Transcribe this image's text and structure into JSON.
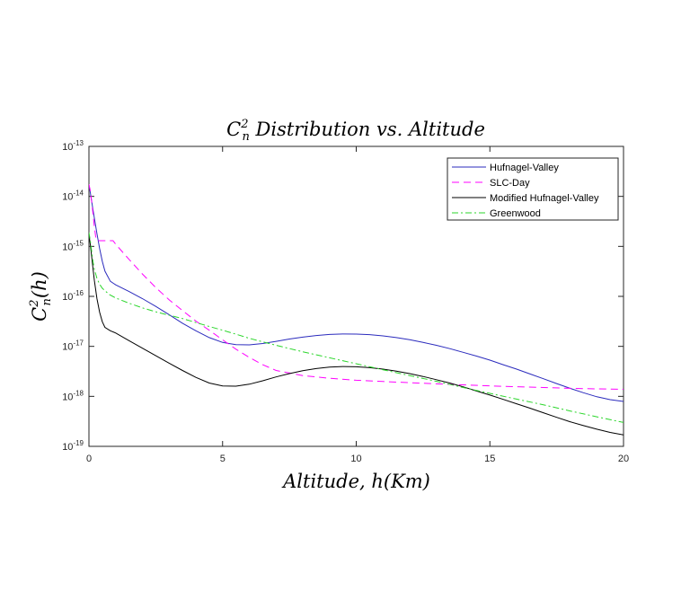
{
  "chart_data": {
    "type": "line",
    "title": "C_n^2 Distribution vs. Altitude",
    "xlabel": "Altitude, h(Km)",
    "ylabel": "C_n^2(h)",
    "xlim": [
      0,
      20
    ],
    "ylim_exponent": [
      -19,
      -13
    ],
    "y_scale": "log",
    "x_ticks": [
      "0",
      "5",
      "10",
      "15",
      "20"
    ],
    "y_ticks": [
      {
        "base": "10",
        "exp": "-13"
      },
      {
        "base": "10",
        "exp": "-14"
      },
      {
        "base": "10",
        "exp": "-15"
      },
      {
        "base": "10",
        "exp": "-16"
      },
      {
        "base": "10",
        "exp": "-17"
      },
      {
        "base": "10",
        "exp": "-18"
      },
      {
        "base": "10",
        "exp": "-19"
      }
    ],
    "grid": false,
    "legend_position": "top-right",
    "series": [
      {
        "name": "Hufnagel-Valley",
        "color": "#2b2bbd",
        "dash": "solid",
        "x": [
          0,
          0.05,
          0.1,
          0.15,
          0.2,
          0.3,
          0.4,
          0.5,
          0.6,
          0.8,
          1.0,
          1.5,
          2.0,
          2.5,
          3.0,
          3.5,
          4.0,
          4.5,
          5.0,
          5.5,
          6.0,
          6.5,
          7.0,
          7.5,
          8.0,
          8.5,
          9.0,
          9.5,
          10.0,
          10.5,
          11.0,
          11.5,
          12.0,
          12.5,
          13.0,
          13.5,
          14.0,
          14.5,
          15.0,
          15.5,
          16.0,
          16.5,
          17.0,
          17.5,
          18.0,
          18.5,
          19.0,
          19.5,
          20.0
        ],
        "y": [
          1.7e-14,
          1.2e-14,
          8e-15,
          5.4e-15,
          3.7e-15,
          1.8e-15,
          9e-16,
          5e-16,
          3.2e-16,
          2e-16,
          1.7e-16,
          1.25e-16,
          9e-17,
          6.3e-17,
          4.3e-17,
          2.9e-17,
          2.05e-17,
          1.5e-17,
          1.2e-17,
          1.08e-17,
          1.07e-17,
          1.14e-17,
          1.26e-17,
          1.4e-17,
          1.53e-17,
          1.65e-17,
          1.73e-17,
          1.77e-17,
          1.76e-17,
          1.72e-17,
          1.62e-17,
          1.5e-17,
          1.36e-17,
          1.2e-17,
          1.05e-17,
          9e-18,
          7.6e-18,
          6.4e-18,
          5.3e-18,
          4.3e-18,
          3.5e-18,
          2.8e-18,
          2.25e-18,
          1.8e-18,
          1.45e-18,
          1.18e-18,
          9.8e-19,
          8.6e-19,
          7.9e-19
        ]
      },
      {
        "name": "SLC-Day",
        "color": "#ff00ff",
        "dash": "dashed",
        "x": [
          0,
          0.05,
          0.1,
          0.15,
          0.2,
          0.25,
          0.3,
          0.35,
          0.5,
          0.75,
          0.9,
          1.0,
          1.5,
          2.0,
          2.5,
          3.0,
          3.5,
          4.0,
          4.5,
          5.0,
          5.5,
          6.0,
          6.5,
          7.0,
          8.0,
          9.0,
          10.0,
          11.0,
          12.0,
          13.0,
          14.0,
          15.0,
          16.0,
          17.0,
          18.0,
          19.0,
          20.0
        ],
        "y": [
          1.75e-14,
          1.3e-14,
          8e-15,
          4.5e-15,
          2.5e-15,
          1.6e-15,
          1.3e-15,
          1.3e-15,
          1.3e-15,
          1.3e-15,
          1.3e-15,
          1.1e-15,
          5.5e-16,
          2.8e-16,
          1.5e-16,
          8.5e-17,
          5.2e-17,
          3.2e-17,
          2.1e-17,
          1.35e-17,
          8.8e-18,
          6e-18,
          4.3e-18,
          3.3e-18,
          2.6e-18,
          2.3e-18,
          2.1e-18,
          1.98e-18,
          1.88e-18,
          1.78e-18,
          1.7e-18,
          1.62e-18,
          1.56e-18,
          1.5e-18,
          1.45e-18,
          1.41e-18,
          1.38e-18
        ]
      },
      {
        "name": "Modified Hufnagel-Valley",
        "color": "#000000",
        "dash": "solid",
        "x": [
          0,
          0.05,
          0.1,
          0.15,
          0.2,
          0.3,
          0.4,
          0.5,
          0.6,
          0.8,
          1.0,
          1.5,
          2.0,
          2.5,
          3.0,
          3.5,
          4.0,
          4.5,
          5.0,
          5.5,
          6.0,
          6.5,
          7.0,
          7.5,
          8.0,
          8.5,
          9.0,
          9.5,
          10.0,
          10.5,
          11.0,
          11.5,
          12.0,
          12.5,
          13.0,
          13.5,
          14.0,
          14.5,
          15.0,
          15.5,
          16.0,
          16.5,
          17.0,
          17.5,
          18.0,
          18.5,
          19.0,
          19.5,
          20.0
        ],
        "y": [
          1.7e-15,
          1.1e-15,
          6.3e-16,
          3.6e-16,
          2.1e-16,
          9e-17,
          4.8e-17,
          3.1e-17,
          2.4e-17,
          2.05e-17,
          1.85e-17,
          1.3e-17,
          9.2e-18,
          6.5e-18,
          4.6e-18,
          3.3e-18,
          2.4e-18,
          1.85e-18,
          1.62e-18,
          1.6e-18,
          1.75e-18,
          2.05e-18,
          2.45e-18,
          2.85e-18,
          3.25e-18,
          3.6e-18,
          3.85e-18,
          3.95e-18,
          3.9e-18,
          3.75e-18,
          3.5e-18,
          3.2e-18,
          2.85e-18,
          2.5e-18,
          2.15e-18,
          1.85e-18,
          1.55e-18,
          1.28e-18,
          1.06e-18,
          8.7e-19,
          7.1e-19,
          5.8e-19,
          4.7e-19,
          3.8e-19,
          3.1e-19,
          2.6e-19,
          2.2e-19,
          1.9e-19,
          1.7e-19
        ]
      },
      {
        "name": "Greenwood",
        "color": "#2bd62b",
        "dash": "dashdot",
        "x": [
          0,
          0.05,
          0.1,
          0.15,
          0.2,
          0.3,
          0.4,
          0.5,
          0.75,
          1.0,
          1.5,
          2.0,
          2.5,
          3.0,
          3.5,
          4.0,
          4.5,
          5.0,
          5.5,
          6.0,
          7.0,
          8.0,
          9.0,
          10.0,
          11.0,
          12.0,
          13.0,
          14.0,
          15.0,
          16.0,
          17.0,
          18.0,
          19.0,
          20.0
        ],
        "y": [
          1.9e-15,
          1.3e-15,
          8e-16,
          5e-16,
          3.5e-16,
          2.3e-16,
          1.75e-16,
          1.45e-16,
          1.1e-16,
          9.3e-17,
          7.3e-17,
          5.9e-17,
          4.9e-17,
          4.2e-17,
          3.6e-17,
          3e-17,
          2.5e-17,
          2.1e-17,
          1.75e-17,
          1.45e-17,
          1.05e-17,
          7.8e-18,
          5.9e-18,
          4.5e-18,
          3.4e-18,
          2.6e-18,
          2e-18,
          1.5e-18,
          1.15e-18,
          8.8e-19,
          6.8e-19,
          5.1e-19,
          3.9e-19,
          3e-19
        ]
      }
    ]
  }
}
